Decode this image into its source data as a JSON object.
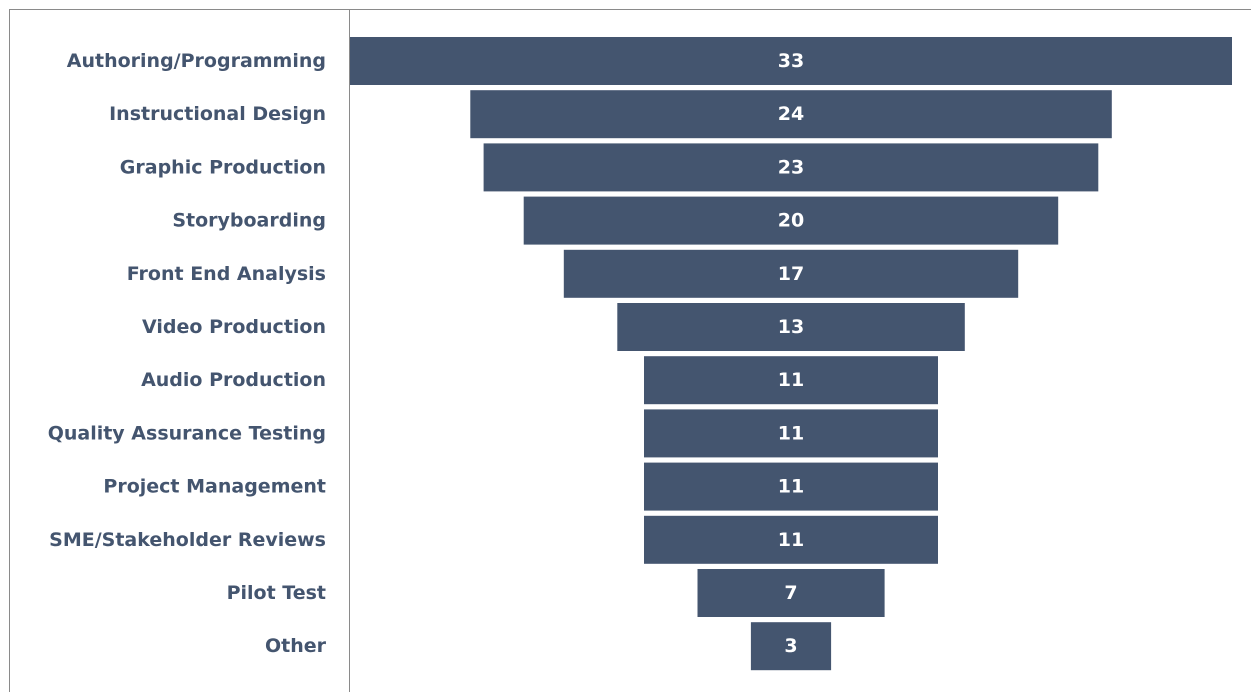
{
  "chart_data": {
    "type": "bar",
    "orientation": "horizontal",
    "style": "funnel",
    "categories": [
      "Authoring/Programming",
      "Instructional Design",
      "Graphic Production",
      "Storyboarding",
      "Front End Analysis",
      "Video Production",
      "Audio Production",
      "Quality Assurance Testing",
      "Project Management",
      "SME/Stakeholder Reviews",
      "Pilot Test",
      "Other"
    ],
    "values": [
      33,
      24,
      23,
      20,
      17,
      13,
      11,
      11,
      11,
      11,
      7,
      3
    ],
    "xlim": [
      0,
      33
    ],
    "grid": false,
    "legend": "none",
    "bar_color": "#44556f",
    "label_color": "#44556f",
    "value_label_color": "#ffffff"
  }
}
